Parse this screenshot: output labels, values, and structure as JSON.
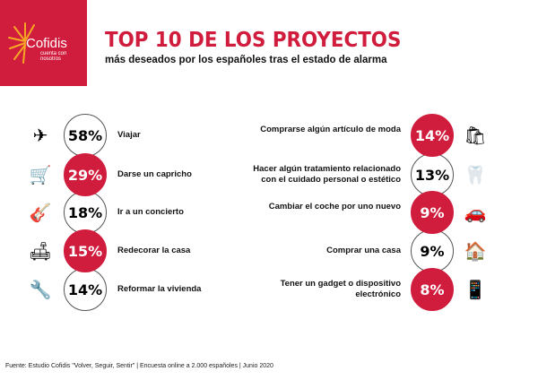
{
  "logo": {
    "name": "Cofidis",
    "tagline": "cuenta con nosotros"
  },
  "title": "TOP 10 DE LOS PROYECTOS",
  "subtitle": "más deseados por los españoles tras el estado de alarma",
  "left_items": [
    {
      "pct": "58%",
      "label": "Viajar",
      "icon": "plane-globe-icon",
      "highlight": false
    },
    {
      "pct": "29%",
      "label": "Darse un capricho",
      "icon": "shopping-cart-icon",
      "highlight": true
    },
    {
      "pct": "18%",
      "label": "Ir a un concierto",
      "icon": "guitar-icon",
      "highlight": false
    },
    {
      "pct": "15%",
      "label": "Redecorar la casa",
      "icon": "armchair-icon",
      "highlight": true
    },
    {
      "pct": "14%",
      "label": "Reformar la vivienda",
      "icon": "tools-icon",
      "highlight": false
    }
  ],
  "right_items": [
    {
      "pct": "14%",
      "label": "Comprarse algún artículo de moda",
      "icon": "shopping-bags-icon",
      "highlight": true
    },
    {
      "pct": "13%",
      "label": "Hacer algún tratamiento relacionado con el cuidado personal o estético",
      "icon": "tooth-icon",
      "highlight": false
    },
    {
      "pct": "9%",
      "label": "Cambiar el coche por uno nuevo",
      "icon": "car-icon",
      "highlight": true
    },
    {
      "pct": "9%",
      "label": "Comprar una casa",
      "icon": "house-icon",
      "highlight": false
    },
    {
      "pct": "8%",
      "label": "Tener un gadget o dispositivo electrónico",
      "icon": "smartphone-icon",
      "highlight": true
    }
  ],
  "footer": "Fuente: Estudio Cofidis \"Volver, Seguir, Sentir\" | Encuesta online a 2.000 españoles | Junio 2020",
  "colors": {
    "brand": "#d11d3d"
  }
}
